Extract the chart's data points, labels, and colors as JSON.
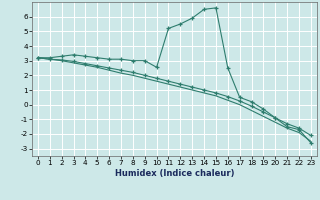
{
  "xlabel": "Humidex (Indice chaleur)",
  "background_color": "#cde8e8",
  "grid_color": "#b8d8d8",
  "line_color": "#2e7d6e",
  "xlim": [
    -0.5,
    23.5
  ],
  "ylim": [
    -3.5,
    7.0
  ],
  "yticks": [
    -3,
    -2,
    -1,
    0,
    1,
    2,
    3,
    4,
    5,
    6
  ],
  "xticks": [
    0,
    1,
    2,
    3,
    4,
    5,
    6,
    7,
    8,
    9,
    10,
    11,
    12,
    13,
    14,
    15,
    16,
    17,
    18,
    19,
    20,
    21,
    22,
    23
  ],
  "line1_x": [
    0,
    1,
    2,
    3,
    4,
    5,
    6,
    7,
    8,
    9,
    10,
    11,
    12,
    13,
    14,
    15,
    16,
    17,
    18,
    19,
    20,
    21,
    22,
    23
  ],
  "line1_y": [
    3.2,
    3.2,
    3.3,
    3.4,
    3.3,
    3.2,
    3.1,
    3.1,
    3.0,
    3.0,
    2.55,
    5.2,
    5.5,
    5.9,
    6.5,
    6.6,
    2.5,
    0.5,
    0.2,
    -0.3,
    -0.9,
    -1.5,
    -1.7,
    -2.6
  ],
  "line2_x": [
    0,
    1,
    2,
    3,
    4,
    5,
    6,
    7,
    8,
    9,
    10,
    11,
    12,
    13,
    14,
    15,
    16,
    17,
    18,
    19,
    20,
    21,
    22,
    23
  ],
  "line2_y": [
    3.2,
    3.1,
    3.05,
    2.95,
    2.8,
    2.65,
    2.5,
    2.35,
    2.2,
    2.0,
    1.8,
    1.6,
    1.4,
    1.2,
    1.0,
    0.8,
    0.55,
    0.25,
    -0.1,
    -0.5,
    -0.9,
    -1.3,
    -1.6,
    -2.1
  ],
  "line3_x": [
    0,
    1,
    2,
    3,
    4,
    5,
    6,
    7,
    8,
    9,
    10,
    11,
    12,
    13,
    14,
    15,
    16,
    17,
    18,
    19,
    20,
    21,
    22,
    23
  ],
  "line3_y": [
    3.2,
    3.1,
    3.0,
    2.85,
    2.7,
    2.55,
    2.35,
    2.15,
    2.0,
    1.8,
    1.6,
    1.4,
    1.2,
    1.0,
    0.8,
    0.6,
    0.3,
    0.0,
    -0.4,
    -0.8,
    -1.2,
    -1.6,
    -1.9,
    -2.5
  ],
  "xlabel_fontsize": 6.0,
  "tick_fontsize": 5.2
}
